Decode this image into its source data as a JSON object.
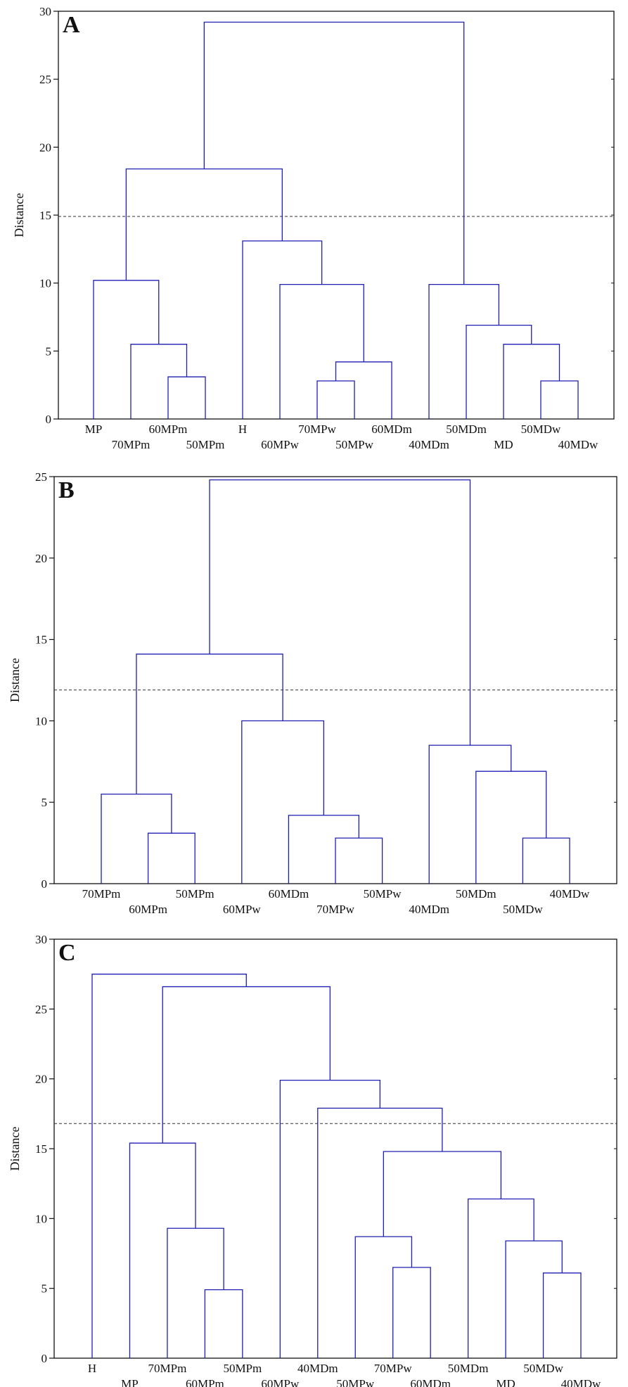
{
  "colors": {
    "branch": "#1f1fb4",
    "axis": "#111111",
    "cutoff": "#333333",
    "background": "#ffffff"
  },
  "chart_data": [
    {
      "type": "dendrogram",
      "panel": "A",
      "ylabel": "Distance",
      "ylim": [
        0,
        30
      ],
      "yticks": [
        0,
        5,
        10,
        15,
        20,
        25,
        30
      ],
      "cutoff": 14.9,
      "leaves": [
        "MP",
        "70MPm",
        "60MPm",
        "50MPm",
        "H",
        "60MPw",
        "70MPw",
        "50MPw",
        "60MDm",
        "40MDm",
        "50MDm",
        "MD",
        "50MDw",
        "40MDw"
      ],
      "merges": [
        {
          "left": 3,
          "right": 4,
          "height": 3.1
        },
        {
          "left": 7,
          "right": 8,
          "height": 2.8
        },
        {
          "left": 13,
          "right": 14,
          "height": 2.8
        },
        {
          "left": 2,
          "right": 3.5,
          "height": 5.5
        },
        {
          "left": 7.5,
          "right": 9,
          "height": 4.2
        },
        {
          "left": 12,
          "right": 13.5,
          "height": 5.5
        },
        {
          "left": 1,
          "right": 2.75,
          "height": 10.2
        },
        {
          "left": 6,
          "right": 8.25,
          "height": 9.9
        },
        {
          "left": 11,
          "right": 12.75,
          "height": 6.9
        },
        {
          "left": 5,
          "right": 7.125,
          "height": 13.1
        },
        {
          "left": 10,
          "right": 11.875,
          "height": 9.9
        },
        {
          "left": 1.875,
          "right": 6.0625,
          "height": 18.4
        },
        {
          "left": 3.96875,
          "right": 10.9375,
          "height": 29.2
        }
      ]
    },
    {
      "type": "dendrogram",
      "panel": "B",
      "ylabel": "Distance",
      "ylim": [
        0,
        25
      ],
      "yticks": [
        0,
        5,
        10,
        15,
        20,
        25
      ],
      "cutoff": 11.9,
      "leaves": [
        "70MPm",
        "60MPm",
        "50MPm",
        "60MPw",
        "60MDm",
        "70MPw",
        "50MPw",
        "40MDm",
        "50MDm",
        "50MDw",
        "40MDw"
      ],
      "merges": [
        {
          "left": 2,
          "right": 3,
          "height": 3.1
        },
        {
          "left": 6,
          "right": 7,
          "height": 2.8
        },
        {
          "left": 10,
          "right": 11,
          "height": 2.8
        },
        {
          "left": 1,
          "right": 2.5,
          "height": 5.5
        },
        {
          "left": 5,
          "right": 6.5,
          "height": 4.2
        },
        {
          "left": 9,
          "right": 10.5,
          "height": 6.9
        },
        {
          "left": 4,
          "right": 5.75,
          "height": 10.0
        },
        {
          "left": 8,
          "right": 9.75,
          "height": 8.5
        },
        {
          "left": 1.75,
          "right": 4.875,
          "height": 14.1
        },
        {
          "left": 3.3125,
          "right": 8.875,
          "height": 24.8
        }
      ]
    },
    {
      "type": "dendrogram",
      "panel": "C",
      "ylabel": "Distance",
      "ylim": [
        0,
        30
      ],
      "yticks": [
        0,
        5,
        10,
        15,
        20,
        25,
        30
      ],
      "cutoff": 16.8,
      "leaves": [
        "H",
        "MP",
        "70MPm",
        "60MPm",
        "50MPm",
        "60MPw",
        "40MDm",
        "50MPw",
        "70MPw",
        "60MDm",
        "50MDm",
        "MD",
        "50MDw",
        "40MDw"
      ],
      "merges": [
        {
          "left": 4,
          "right": 5,
          "height": 4.9
        },
        {
          "left": 3,
          "right": 4.5,
          "height": 9.3
        },
        {
          "left": 2,
          "right": 3.75,
          "height": 15.4
        },
        {
          "left": 9,
          "right": 10,
          "height": 6.5
        },
        {
          "left": 8,
          "right": 9.5,
          "height": 8.7
        },
        {
          "left": 13,
          "right": 14,
          "height": 6.1
        },
        {
          "left": 12,
          "right": 13.5,
          "height": 8.4
        },
        {
          "left": 11,
          "right": 12.75,
          "height": 11.4
        },
        {
          "left": 8.75,
          "right": 11.875,
          "height": 14.8
        },
        {
          "left": 7,
          "right": 10.3125,
          "height": 17.9
        },
        {
          "left": 6,
          "right": 8.65625,
          "height": 19.9
        },
        {
          "left": 2.875,
          "right": 7.328125,
          "height": 26.6
        },
        {
          "left": 1,
          "right": 5.1015625,
          "height": 27.5
        }
      ]
    }
  ]
}
